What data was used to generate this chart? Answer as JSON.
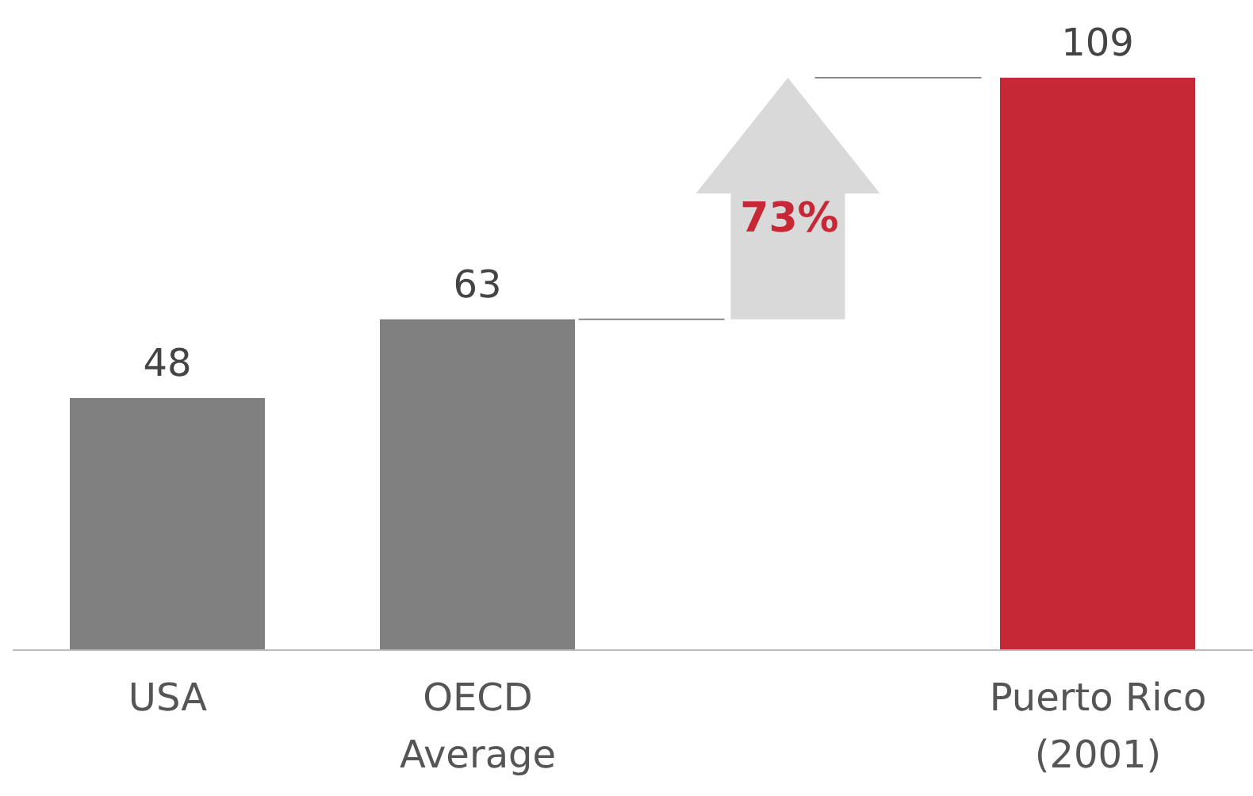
{
  "chart_data": {
    "type": "bar",
    "categories": [
      "USA",
      "OECD\nAverage",
      null,
      "Puerto Rico\n(2001)"
    ],
    "values": [
      48,
      63,
      null,
      109
    ],
    "colors": [
      "#808080",
      "#808080",
      "#808080",
      "#c62835"
    ],
    "data_labels": true,
    "annotations": [
      "73%"
    ]
  }
}
